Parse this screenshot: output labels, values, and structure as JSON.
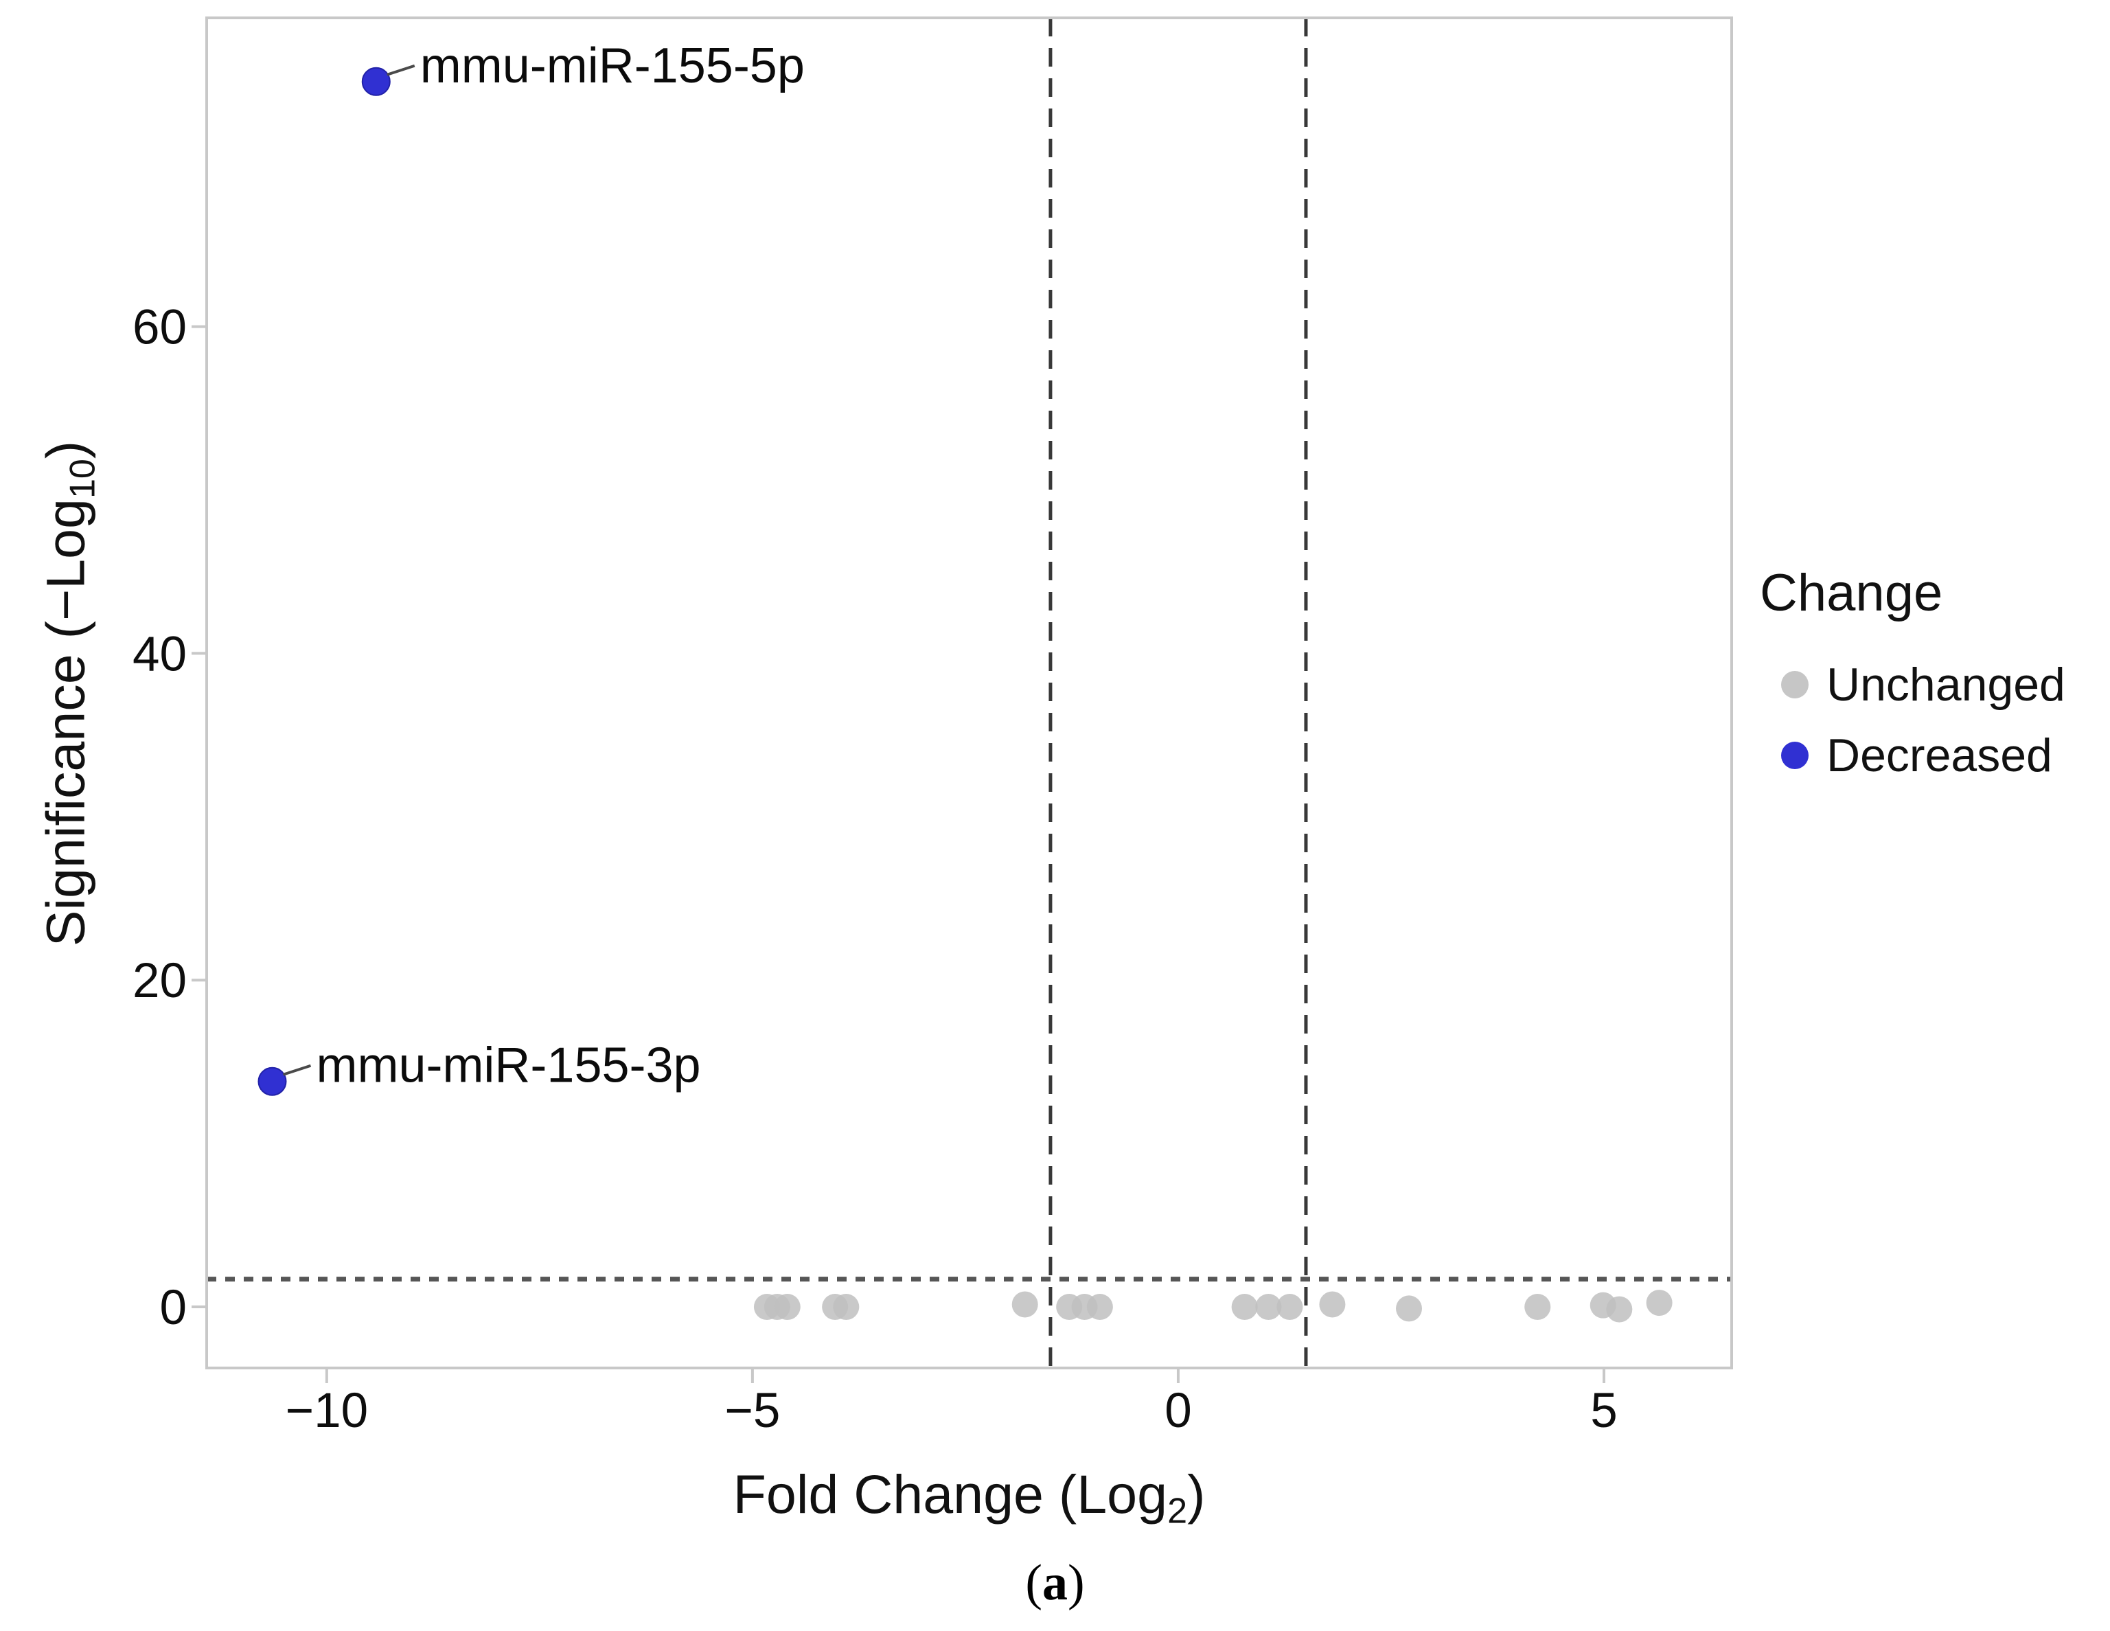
{
  "chart_data": {
    "type": "scatter",
    "title": "",
    "xlabel": {
      "main": "Fold Change (Log",
      "sub": "2",
      "close": ")"
    },
    "ylabel": {
      "main": "Significance (−Log",
      "sub": "10",
      "close": ")"
    },
    "xlim": [
      -11.41,
      6.5
    ],
    "ylim": [
      -3.74,
      78.9
    ],
    "x_ticks": [
      {
        "v": -10,
        "label": "−10"
      },
      {
        "v": -5,
        "label": "−5"
      },
      {
        "v": 0,
        "label": "0"
      },
      {
        "v": 5,
        "label": "5"
      }
    ],
    "y_ticks": [
      {
        "v": 0,
        "label": "0"
      },
      {
        "v": 20,
        "label": "20"
      },
      {
        "v": 40,
        "label": "40"
      },
      {
        "v": 60,
        "label": "60"
      }
    ],
    "thresholds": {
      "vlines": [
        -1.5,
        1.5
      ],
      "hline": 1.7
    },
    "series": [
      {
        "name": "Unchanged",
        "color": "#bfbfbf",
        "opacity": 0.85,
        "radius": 19,
        "points": [
          [
            -4.83,
            0
          ],
          [
            -4.71,
            0
          ],
          [
            -4.59,
            0
          ],
          [
            -4.03,
            0
          ],
          [
            -3.9,
            0
          ],
          [
            -1.8,
            0.15
          ],
          [
            -1.28,
            0
          ],
          [
            -1.1,
            0
          ],
          [
            -0.92,
            0
          ],
          [
            0.78,
            0
          ],
          [
            1.06,
            0
          ],
          [
            1.31,
            0
          ],
          [
            1.81,
            0.15
          ],
          [
            2.71,
            -0.1
          ],
          [
            4.22,
            0
          ],
          [
            4.99,
            0.1
          ],
          [
            5.18,
            -0.15
          ],
          [
            5.65,
            0.25
          ]
        ]
      },
      {
        "name": "Decreased",
        "color": "#3030d2",
        "stroke": "#2222a8",
        "opacity": 1,
        "radius": 20,
        "points": [
          [
            -9.42,
            75.0
          ],
          [
            -10.64,
            13.8
          ]
        ]
      }
    ],
    "annotations": [
      {
        "text": "mmu-miR-155-5p",
        "x": -9.42,
        "y": 75.0
      },
      {
        "text": "mmu-miR-155-3p",
        "x": -10.64,
        "y": 13.8
      }
    ],
    "legend": {
      "title": "Change",
      "position": "right",
      "items": [
        {
          "label": "Unchanged",
          "color": "#c6c6c6"
        },
        {
          "label": "Decreased",
          "color": "#3030d2"
        }
      ]
    },
    "caption": {
      "open": "(",
      "letter": "a",
      "close": ")"
    },
    "grid": false,
    "frame_color": "#c8c8c8",
    "dash_color_h": "#565656",
    "dash_color_v": "#383838",
    "text_color": "#0d0d0d"
  }
}
